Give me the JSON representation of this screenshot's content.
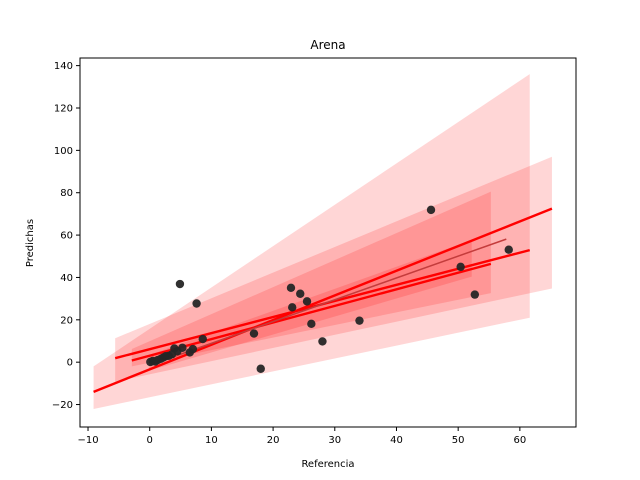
{
  "chart_data": {
    "type": "scatter",
    "title": "Arena",
    "xlabel": "Referencia",
    "ylabel": "Predichas",
    "xlim": [
      -11.3,
      69.1
    ],
    "ylim": [
      -30.6,
      143.6
    ],
    "xticks": [
      -10,
      0,
      10,
      20,
      30,
      40,
      50,
      60
    ],
    "yticks": [
      -20,
      0,
      20,
      40,
      60,
      80,
      100,
      120,
      140
    ],
    "grid": false,
    "legend": "none",
    "colors": {
      "points": "#262626",
      "regression_line": "#ff0000",
      "mean_line": "#c43c3c",
      "band": "#ff0000"
    },
    "points": [
      {
        "x": 0.1,
        "y": 0.1
      },
      {
        "x": 0.5,
        "y": 0.6
      },
      {
        "x": 0.9,
        "y": 0.3
      },
      {
        "x": 1.3,
        "y": 1.0
      },
      {
        "x": 1.8,
        "y": 1.6
      },
      {
        "x": 2.2,
        "y": 2.2
      },
      {
        "x": 2.6,
        "y": 2.8
      },
      {
        "x": 3.1,
        "y": 3.0
      },
      {
        "x": 3.6,
        "y": 3.7
      },
      {
        "x": 4.0,
        "y": 6.5
      },
      {
        "x": 4.5,
        "y": 5.2
      },
      {
        "x": 4.9,
        "y": 36.9
      },
      {
        "x": 5.3,
        "y": 6.8
      },
      {
        "x": 6.5,
        "y": 4.6
      },
      {
        "x": 7.0,
        "y": 6.2
      },
      {
        "x": 7.6,
        "y": 27.7
      },
      {
        "x": 8.6,
        "y": 10.9
      },
      {
        "x": 16.9,
        "y": 13.5
      },
      {
        "x": 18.0,
        "y": -3.1
      },
      {
        "x": 22.9,
        "y": 35.1
      },
      {
        "x": 23.1,
        "y": 25.9
      },
      {
        "x": 24.4,
        "y": 32.3
      },
      {
        "x": 25.5,
        "y": 28.7
      },
      {
        "x": 26.2,
        "y": 18.1
      },
      {
        "x": 28.0,
        "y": 9.8
      },
      {
        "x": 34.0,
        "y": 19.6
      },
      {
        "x": 45.6,
        "y": 71.9
      },
      {
        "x": 50.4,
        "y": 45.0
      },
      {
        "x": 52.7,
        "y": 31.9
      },
      {
        "x": 58.2,
        "y": 53.1
      }
    ],
    "regression_lines": [
      {
        "x": [
          -9.1,
          65.2
        ],
        "y": [
          -14.0,
          72.5
        ],
        "band_lower": [
          -22.1,
          21.0
        ],
        "band_upper": [
          -2.0,
          136.0
        ],
        "band_x_end": 61.6
      },
      {
        "x": [
          -5.6,
          61.6
        ],
        "y": [
          1.9,
          52.9
        ],
        "band_lower": [
          -9.2,
          34.8
        ],
        "band_upper": [
          11.3,
          97.0
        ],
        "band_x_end": 65.2
      },
      {
        "x": [
          -2.9,
          55.3
        ],
        "y": [
          0.8,
          46.4
        ],
        "band_lower": [
          -2.0,
          32.6
        ],
        "band_upper": [
          6.2,
          80.5
        ],
        "band_x_end": 55.3
      },
      {
        "x": [
          -0.1,
          57.8
        ],
        "y": [
          -1.5,
          58.1
        ],
        "band_lower": [
          -4.0,
          40.4
        ],
        "band_upper": [
          3.4,
          57.7
        ],
        "band_x_end": 52.2
      }
    ]
  }
}
